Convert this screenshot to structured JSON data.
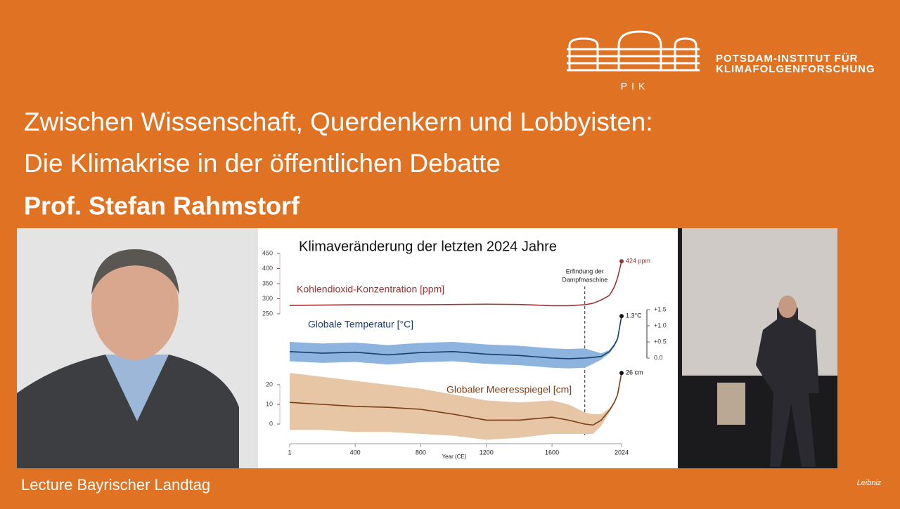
{
  "header": {
    "logo": {
      "line1": "Potsdam-Institut für",
      "line2": "Klimafolgenforschung",
      "abbr": "PIK"
    },
    "title_line1": "Zwischen Wissenschaft, Querdenkern und Lobbyisten:",
    "title_line2": "Die Klimakrise in der öffentlichen Debatte",
    "speaker": "Prof. Stefan Rahmstorf"
  },
  "footer": {
    "caption": "Lecture Bayrischer Landtag",
    "partner": "Leibniz"
  },
  "chart_data": {
    "type": "line",
    "title": "Klimaveränderung der letzten 2024 Jahre",
    "xlabel": "Year (CE)",
    "x": [
      1,
      200,
      400,
      600,
      800,
      1000,
      1200,
      1400,
      1600,
      1700,
      1800,
      1850,
      1900,
      1950,
      1980,
      2000,
      2024
    ],
    "xlim": [
      1,
      2024
    ],
    "xticks": [
      1,
      400,
      800,
      1200,
      1600,
      2024
    ],
    "annotation": {
      "x": 1800,
      "lines": [
        "Erfindung der",
        "Dampfmaschine"
      ]
    },
    "panels": [
      {
        "ylim": [
          250,
          450
        ],
        "yticks": [
          250,
          300,
          350,
          400,
          450
        ],
        "series": [
          {
            "name": "Kohlendioxid-Konzentration [ppm]",
            "color": "#9b3535",
            "values": [
              278,
              279,
              280,
              280,
              280,
              281,
              282,
              281,
              277,
              277,
              280,
              285,
              296,
              311,
              339,
              370,
              424
            ],
            "value_labels": [
              null,
              null,
              null,
              null,
              null,
              null,
              null,
              null,
              null,
              null,
              null,
              null,
              null,
              null,
              null,
              null,
              "424 ppm"
            ]
          }
        ]
      },
      {
        "ylim": [
          0,
          1.5
        ],
        "yticks": [
          {
            "value": 0,
            "label": "0.0"
          },
          {
            "value": 0.5,
            "label": "+0.5"
          },
          {
            "value": 1,
            "label": "+1.0"
          },
          {
            "value": 1.5,
            "label": "+1.5"
          }
        ],
        "series": [
          {
            "name": "Globale Temperatur [°C]",
            "color": "#173d6b",
            "band_color": "#8db4df",
            "values": [
              0.2,
              0.15,
              0.18,
              0.1,
              0.17,
              0.2,
              0.12,
              0.08,
              0,
              -0.02,
              0,
              0.02,
              0.05,
              0.2,
              0.4,
              0.6,
              1.3
            ],
            "upper": [
              0.5,
              0.45,
              0.48,
              0.4,
              0.47,
              0.5,
              0.42,
              0.38,
              0.3,
              0.28,
              0.3,
              0.22,
              0.15,
              0.25,
              0.45,
              0.65,
              1.35
            ],
            "lower": [
              -0.1,
              -0.15,
              -0.12,
              -0.2,
              -0.13,
              -0.1,
              -0.18,
              -0.22,
              -0.3,
              -0.32,
              -0.3,
              -0.18,
              -0.05,
              0.15,
              0.35,
              0.55,
              1.25
            ],
            "value_labels": [
              null,
              null,
              null,
              null,
              null,
              null,
              null,
              null,
              null,
              null,
              null,
              null,
              null,
              null,
              null,
              null,
              "1.3°C"
            ]
          }
        ]
      },
      {
        "ylim": [
          0,
          20
        ],
        "yticks": [
          0,
          10,
          20
        ],
        "series": [
          {
            "name": "Globaler Meeresspiegel [cm]",
            "color": "#7a3c12",
            "band_color": "#e6c6a5",
            "values": [
              11,
              10,
              9,
              8.5,
              7.5,
              5,
              2,
              2,
              3.5,
              2,
              0,
              -0.5,
              2,
              7,
              11,
              15,
              26
            ],
            "upper": [
              26,
              24,
              22,
              20,
              18,
              15,
              12,
              11,
              12,
              10,
              6,
              5,
              5,
              8,
              11.5,
              15.5,
              26.5
            ],
            "lower": [
              -3,
              -3,
              -4,
              -4,
              -5,
              -6,
              -8,
              -7,
              -5,
              -5,
              -5,
              -5,
              -1,
              6,
              10.5,
              14.5,
              25.5
            ],
            "value_labels": [
              null,
              null,
              null,
              null,
              null,
              null,
              null,
              null,
              null,
              null,
              null,
              null,
              null,
              null,
              null,
              null,
              "26 cm"
            ]
          }
        ]
      }
    ]
  }
}
